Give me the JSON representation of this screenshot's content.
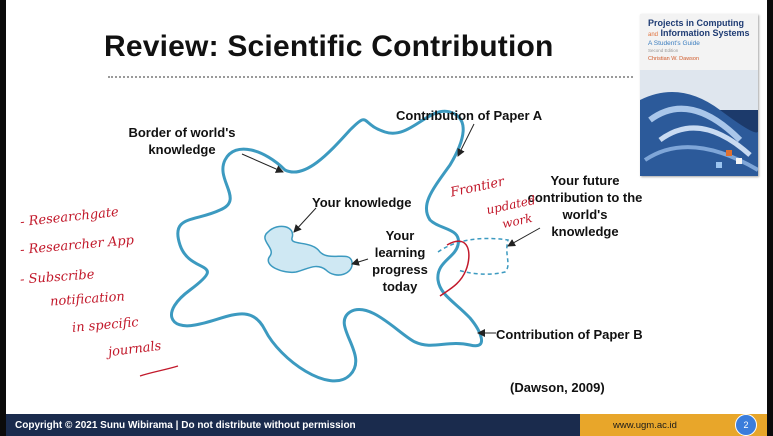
{
  "slide": {
    "title": "Review: Scientific Contribution",
    "book": {
      "title_line1": "Projects in Computing",
      "title_and": "and",
      "title_line2": "Information Systems",
      "subtitle": "A Student's Guide",
      "edition": "Second Edition",
      "author": "Christian W. Dawson",
      "cover_color": "#1f3c74"
    },
    "labels": {
      "contribution_a": "Contribution of Paper A",
      "border_line1": "Border of world's",
      "border_line2": "knowledge",
      "your_knowledge": "Your knowledge",
      "future_line1": "Your future",
      "future_line2": "contribution to the",
      "future_line3": "world's",
      "future_line4": "knowledge",
      "learning_line1": "Your",
      "learning_line2": "learning",
      "learning_line3": "progress",
      "learning_line4": "today",
      "contribution_b": "Contribution of Paper B",
      "citation": "(Dawson, 2009)"
    },
    "handwriting": {
      "item1": "- Researchgate",
      "item2": "- Researcher App",
      "item3": "- Subscribe",
      "item4": "notification",
      "item5": "in specific",
      "item6": "journals",
      "frontier": "Frontier",
      "updated1": "updated",
      "updated2": "work"
    }
  },
  "footer": {
    "copyright": "Copyright © 2021 Sunu Wibirama | Do not distribute without permission",
    "url": "www.ugm.ac.id",
    "page_number": "2"
  },
  "colors": {
    "blob_stroke": "#3c9ac0",
    "knowledge_fill": "#cfe8f3",
    "annotation_red": "#c2192b",
    "footer_bg": "#1a2b4d",
    "footer_accent": "#e8a62a"
  }
}
